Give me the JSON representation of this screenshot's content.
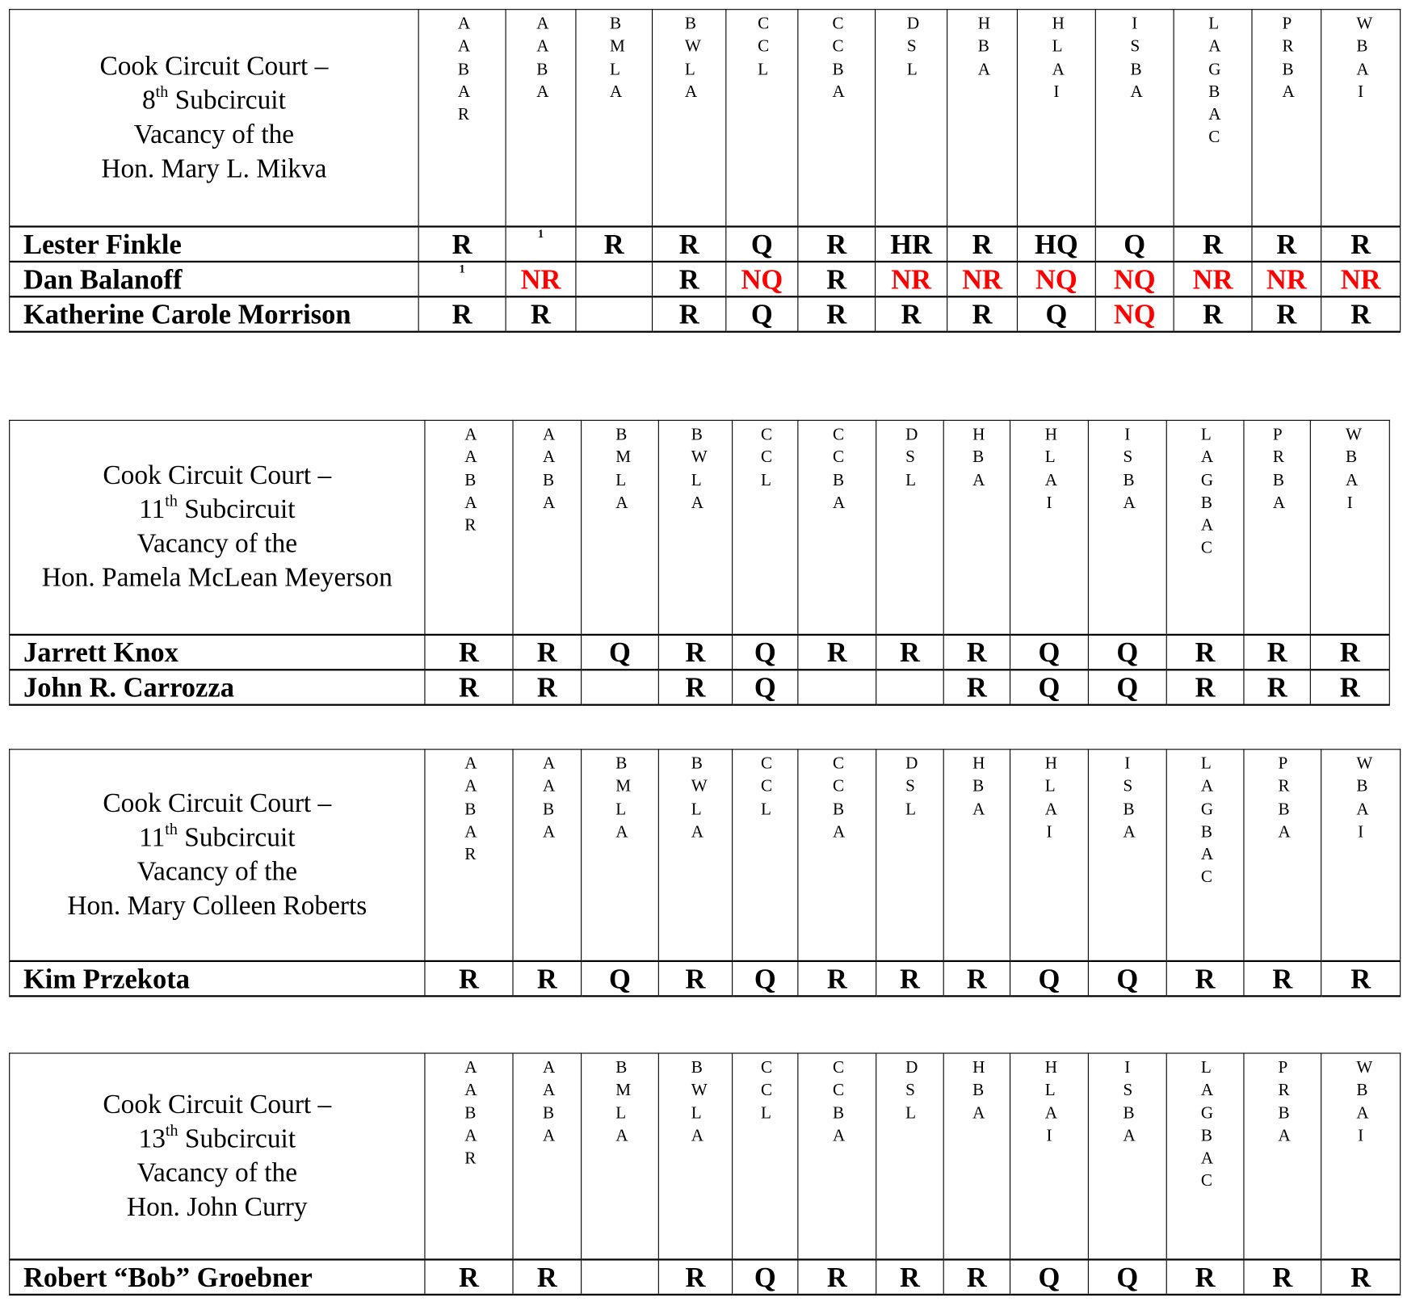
{
  "organizations": [
    "AABAR",
    "AABA",
    "BMLA",
    "BWLA",
    "CCL",
    "CCBA",
    "DSL",
    "HBA",
    "HLAI",
    "ISBA",
    "LAGBAC",
    "PRBA",
    "WBAI"
  ],
  "colors": {
    "not_recommended": "#ff0000",
    "default": "#000000"
  },
  "tables": [
    {
      "title": {
        "line1": "Cook Circuit Court –",
        "num": "8",
        "sup": "th",
        "line2_rest": " Subcircuit",
        "line3": "Vacancy of the",
        "line4": "Hon. Mary L. Mikva"
      },
      "candidates": [
        {
          "name": "Lester Finkle",
          "ratings": [
            "R",
            "^1",
            "R",
            "R",
            "Q",
            "R",
            "HR",
            "R",
            "HQ",
            "Q",
            "R",
            "R",
            "R"
          ]
        },
        {
          "name": "Dan Balanoff",
          "ratings": [
            "^1",
            "NR",
            "",
            "R",
            "NQ",
            "R",
            "NR",
            "NR",
            "NQ",
            "NQ",
            "NR",
            "NR",
            "NR"
          ]
        },
        {
          "name": "Katherine Carole Morrison",
          "ratings": [
            "R",
            "R",
            "",
            "R",
            "Q",
            "R",
            "R",
            "R",
            "Q",
            "NQ",
            "R",
            "R",
            "R"
          ]
        }
      ]
    },
    {
      "title": {
        "line1": "Cook Circuit Court –",
        "num": "11",
        "sup": "th",
        "line2_rest": " Subcircuit",
        "line3": "Vacancy of the",
        "line4": "Hon. Pamela McLean Meyerson"
      },
      "candidates": [
        {
          "name": "Jarrett Knox",
          "ratings": [
            "R",
            "R",
            "Q",
            "R",
            "Q",
            "R",
            "R",
            "R",
            "Q",
            "Q",
            "R",
            "R",
            "R"
          ]
        },
        {
          "name": "John R. Carrozza",
          "ratings": [
            "R",
            "R",
            "",
            "R",
            "Q",
            "",
            "",
            "R",
            "Q",
            "Q",
            "R",
            "R",
            "R"
          ]
        }
      ]
    },
    {
      "title": {
        "line1": "Cook Circuit Court –",
        "num": "11",
        "sup": "th",
        "line2_rest": " Subcircuit",
        "line3": "Vacancy of the",
        "line4": "Hon. Mary Colleen Roberts"
      },
      "candidates": [
        {
          "name": "Kim Przekota",
          "ratings": [
            "R",
            "R",
            "Q",
            "R",
            "Q",
            "R",
            "R",
            "R",
            "Q",
            "Q",
            "R",
            "R",
            "R"
          ]
        }
      ]
    },
    {
      "title": {
        "line1": "Cook Circuit Court –",
        "num": "13",
        "sup": "th",
        "line2_rest": " Subcircuit",
        "line3": "Vacancy of the",
        "line4": "Hon. John Curry"
      },
      "candidates": [
        {
          "name": "Robert “Bob” Groebner",
          "ratings": [
            "R",
            "R",
            "",
            "R",
            "Q",
            "R",
            "R",
            "R",
            "Q",
            "Q",
            "R",
            "R",
            "R"
          ]
        }
      ]
    }
  ]
}
